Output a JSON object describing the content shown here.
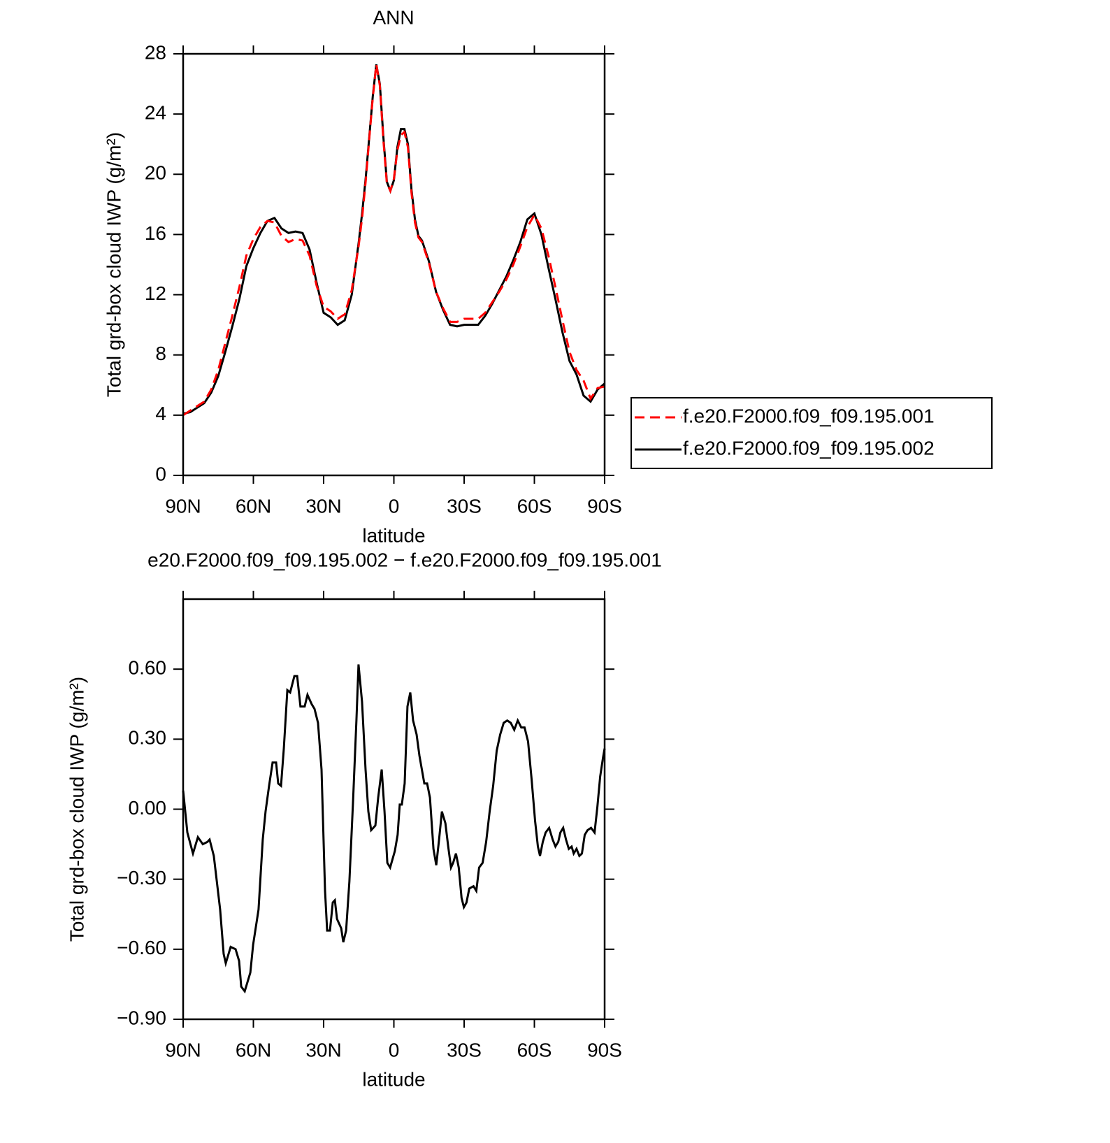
{
  "chart_data": [
    {
      "type": "line",
      "title": "ANN",
      "xlabel": "latitude",
      "ylabel": "Total grd-box cloud IWP (g/m²)",
      "x": [
        90,
        87,
        84,
        81,
        78,
        75,
        72,
        69,
        66,
        63,
        60,
        57,
        54,
        51,
        48,
        45,
        42,
        39,
        36,
        33,
        30,
        27,
        24,
        21,
        18,
        15,
        13.5,
        12,
        10.5,
        9,
        7.5,
        6,
        4.5,
        3,
        1.5,
        0,
        -1.5,
        -3,
        -4.5,
        -6,
        -7.5,
        -9,
        -10.5,
        -12,
        -15,
        -18,
        -21,
        -24,
        -27,
        -30,
        -33,
        -36,
        -39,
        -42,
        -45,
        -48,
        -51,
        -54,
        -57,
        -60,
        -63,
        -66,
        -69,
        -72,
        -75,
        -78,
        -81,
        -84,
        -87,
        -90
      ],
      "series": [
        {
          "name": "f.e20.F2000.f09_f09.195.001",
          "color": "#ff0000",
          "line_style": "dashed",
          "values": [
            4.0,
            4.3,
            4.6,
            4.9,
            5.7,
            7.0,
            8.8,
            10.6,
            12.5,
            14.6,
            15.7,
            16.5,
            16.9,
            16.8,
            15.9,
            15.5,
            15.7,
            15.6,
            14.6,
            12.6,
            11.2,
            10.9,
            10.4,
            10.7,
            12.3,
            15.3,
            17.2,
            19.6,
            22.4,
            25.1,
            27.3,
            25.9,
            22.3,
            19.4,
            18.9,
            19.7,
            21.6,
            22.6,
            22.8,
            21.8,
            18.8,
            16.8,
            15.8,
            15.5,
            14.1,
            12.2,
            11.1,
            10.2,
            10.2,
            10.4,
            10.4,
            10.4,
            10.8,
            11.5,
            12.2,
            13.0,
            14.0,
            15.2,
            16.5,
            17.3,
            16.4,
            14.6,
            12.5,
            10.3,
            8.2,
            7.0,
            6.3,
            5.1,
            5.8,
            5.9
          ]
        },
        {
          "name": "f.e20.F2000.f09_f09.195.002",
          "color": "#000000",
          "line_style": "solid",
          "values": [
            4.1,
            4.2,
            4.5,
            4.8,
            5.5,
            6.6,
            8.2,
            9.9,
            11.7,
            13.9,
            15.1,
            16.1,
            16.9,
            17.1,
            16.4,
            16.1,
            16.2,
            16.1,
            15.0,
            12.8,
            10.8,
            10.5,
            10.0,
            10.3,
            12.0,
            15.5,
            17.5,
            19.8,
            22.5,
            25.2,
            27.3,
            26.0,
            22.5,
            19.5,
            18.9,
            19.6,
            21.8,
            23.0,
            23.0,
            22.0,
            19.0,
            17.0,
            15.9,
            15.6,
            14.2,
            12.2,
            11.0,
            10.0,
            9.9,
            10.0,
            10.0,
            10.0,
            10.6,
            11.4,
            12.3,
            13.2,
            14.3,
            15.5,
            17.0,
            17.4,
            16.0,
            13.8,
            11.7,
            9.5,
            7.6,
            6.7,
            5.3,
            4.9,
            5.7,
            6.1
          ]
        }
      ],
      "xlim": [
        90,
        -90
      ],
      "xticks": [
        {
          "value": 90,
          "label": "90N"
        },
        {
          "value": 60,
          "label": "60N"
        },
        {
          "value": 30,
          "label": "30N"
        },
        0,
        {
          "value": -30,
          "label": "30S"
        },
        {
          "value": -60,
          "label": "60S"
        },
        {
          "value": -90,
          "label": "90S"
        }
      ],
      "ylim": [
        0,
        28
      ],
      "yticks": [
        0,
        4,
        8,
        12,
        16,
        20,
        24,
        28
      ],
      "legend": "right"
    },
    {
      "type": "line",
      "title": "e20.F2000.f09_f09.195.002 − f.e20.F2000.f09_f09.195.001",
      "xlabel": "latitude",
      "ylabel": "Total grd-box cloud IWP (g/m²)",
      "x": [
        90,
        88.2,
        85.8,
        83.7,
        81.6,
        79.6,
        78.7,
        76.9,
        74.2,
        72.7,
        71.8,
        69.7,
        67.6,
        66.1,
        65.2,
        63.7,
        61.3,
        60.1,
        57.8,
        56.0,
        54.8,
        53.3,
        51.8,
        50.3,
        49.4,
        48.2,
        47.0,
        45.5,
        44.3,
        42.5,
        41.3,
        39.9,
        38.1,
        36.9,
        35.1,
        33.9,
        32.4,
        30.9,
        29.4,
        28.5,
        27.3,
        26.1,
        25.2,
        24.3,
        22.5,
        21.6,
        20.4,
        19.0,
        17.5,
        16.0,
        15.1,
        13.6,
        12.1,
        10.9,
        9.7,
        7.9,
        6.7,
        5.2,
        4.0,
        2.8,
        1.6,
        -0.4,
        -1.6,
        -2.5,
        -3.4,
        -4.6,
        -5.8,
        -7.0,
        -8.2,
        -9.7,
        -10.9,
        -13.0,
        -14.2,
        -15.4,
        -16.9,
        -18.1,
        -19.3,
        -20.5,
        -22.0,
        -23.2,
        -24.4,
        -25.3,
        -26.5,
        -27.7,
        -28.9,
        -29.9,
        -31.0,
        -32.2,
        -34.0,
        -35.2,
        -36.4,
        -37.9,
        -39.4,
        -40.9,
        -42.4,
        -43.9,
        -45.4,
        -46.9,
        -48.4,
        -49.9,
        -51.4,
        -52.9,
        -54.4,
        -55.8,
        -57.3,
        -58.8,
        -60.3,
        -61.5,
        -62.4,
        -63.6,
        -64.8,
        -66.3,
        -67.8,
        -69.0,
        -70.2,
        -71.1,
        -72.3,
        -73.5,
        -74.7,
        -75.9,
        -76.8,
        -78.0,
        -79.2,
        -80.3,
        -81.5,
        -82.7,
        -84.2,
        -85.7,
        -86.9,
        -88.1,
        -89.3,
        -90
      ],
      "values": [
        0.08,
        -0.1,
        -0.19,
        -0.12,
        -0.15,
        -0.14,
        -0.13,
        -0.2,
        -0.43,
        -0.62,
        -0.66,
        -0.59,
        -0.6,
        -0.65,
        -0.76,
        -0.78,
        -0.7,
        -0.58,
        -0.43,
        -0.13,
        -0.01,
        0.1,
        0.2,
        0.2,
        0.11,
        0.1,
        0.26,
        0.51,
        0.5,
        0.57,
        0.57,
        0.44,
        0.44,
        0.49,
        0.45,
        0.43,
        0.37,
        0.17,
        -0.35,
        -0.52,
        -0.52,
        -0.4,
        -0.39,
        -0.47,
        -0.51,
        -0.57,
        -0.52,
        -0.31,
        0.02,
        0.38,
        0.62,
        0.46,
        0.17,
        -0.01,
        -0.09,
        -0.07,
        0.05,
        0.17,
        -0.01,
        -0.23,
        -0.25,
        -0.18,
        -0.11,
        0.02,
        0.02,
        0.11,
        0.44,
        0.5,
        0.38,
        0.32,
        0.23,
        0.11,
        0.11,
        0.05,
        -0.17,
        -0.24,
        -0.13,
        -0.01,
        -0.06,
        -0.16,
        -0.25,
        -0.23,
        -0.19,
        -0.25,
        -0.38,
        -0.42,
        -0.4,
        -0.34,
        -0.33,
        -0.35,
        -0.25,
        -0.23,
        -0.14,
        -0.01,
        0.1,
        0.25,
        0.32,
        0.37,
        0.38,
        0.37,
        0.34,
        0.38,
        0.35,
        0.35,
        0.29,
        0.13,
        -0.05,
        -0.16,
        -0.2,
        -0.14,
        -0.1,
        -0.08,
        -0.13,
        -0.16,
        -0.14,
        -0.1,
        -0.08,
        -0.13,
        -0.17,
        -0.16,
        -0.19,
        -0.17,
        -0.2,
        -0.19,
        -0.11,
        -0.09,
        -0.08,
        -0.1,
        0.01,
        0.14,
        0.22,
        0.26
      ],
      "color": "#000000",
      "line_style": "solid",
      "xlim": [
        90,
        -90
      ],
      "xticks": [
        {
          "value": 90,
          "label": "90N"
        },
        {
          "value": 60,
          "label": "60N"
        },
        {
          "value": 30,
          "label": "30N"
        },
        0,
        {
          "value": -30,
          "label": "30S"
        },
        {
          "value": -60,
          "label": "60S"
        },
        {
          "value": -90,
          "label": "90S"
        }
      ],
      "ylim": [
        -0.9,
        0.9
      ],
      "yticks": [
        {
          "value": -0.9,
          "label": "−0.90"
        },
        {
          "value": -0.6,
          "label": "−0.60"
        },
        {
          "value": -0.3,
          "label": "−0.30"
        },
        {
          "value": 0,
          "label": "0.00"
        },
        {
          "value": 0.3,
          "label": "0.30"
        },
        {
          "value": 0.6,
          "label": "0.60"
        }
      ]
    }
  ]
}
